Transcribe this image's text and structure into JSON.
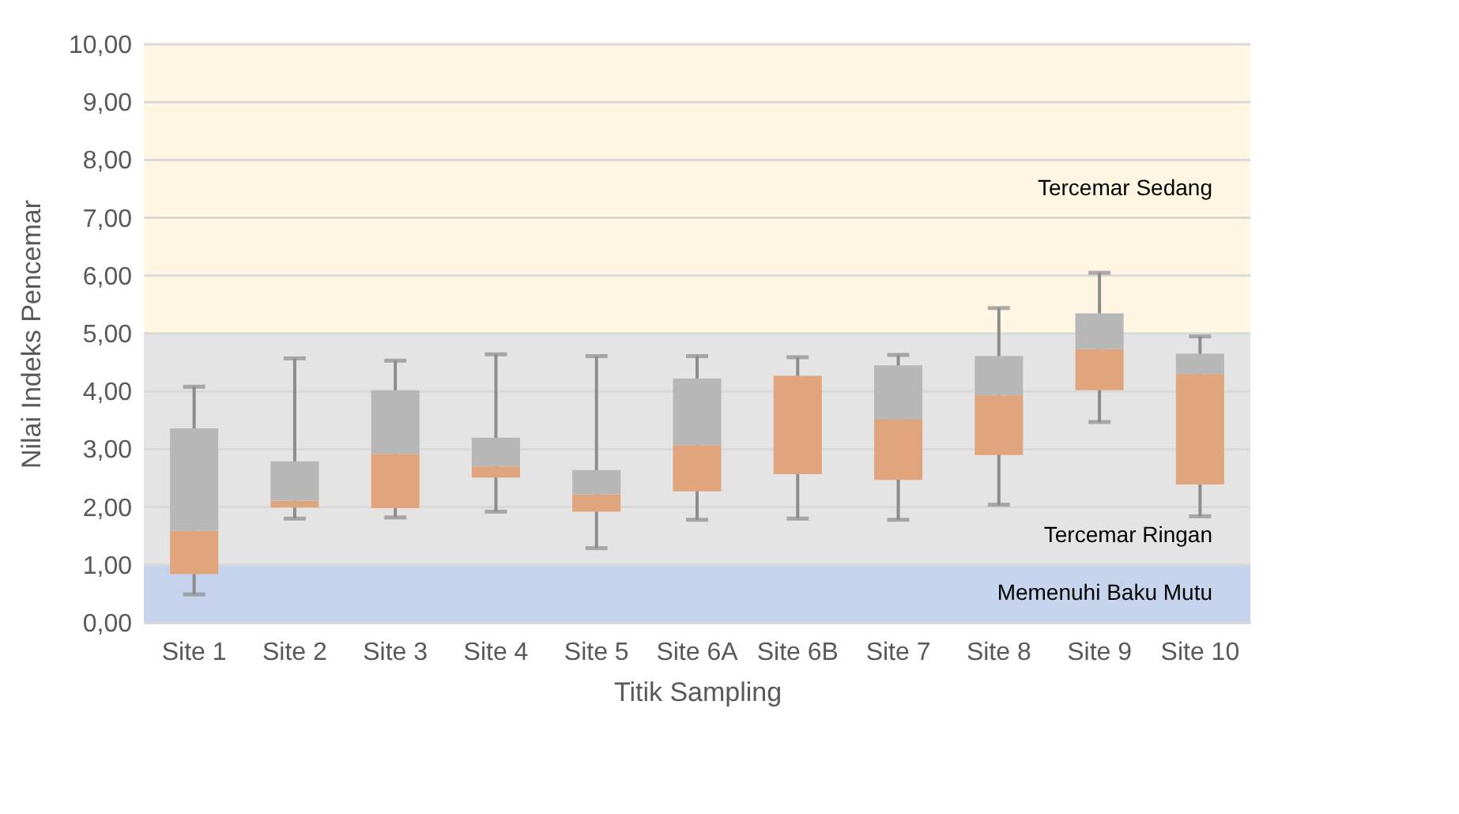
{
  "chart_data": {
    "type": "box",
    "xlabel": "Titik Sampling",
    "ylabel": "Nilai Indeks Pencemar",
    "categories": [
      "Site 1",
      "Site 2",
      "Site 3",
      "Site 4",
      "Site 5",
      "Site 6A",
      "Site 6B",
      "Site 7",
      "Site 8",
      "Site 9",
      "Site 10"
    ],
    "series": [
      {
        "color": "#e0a57c",
        "boxes": [
          {
            "low": 0.49,
            "q1": 0.84,
            "median": 1.59,
            "q3": 3.36,
            "high": 4.08
          },
          {
            "low": 1.8,
            "q1": 1.99,
            "median": 2.11,
            "q3": 2.79,
            "high": 4.57
          },
          {
            "low": 1.82,
            "q1": 1.98,
            "median": 2.92,
            "q3": 4.02,
            "high": 4.53
          },
          {
            "low": 1.92,
            "q1": 2.51,
            "median": 2.7,
            "q3": 3.2,
            "high": 4.64
          },
          {
            "low": 1.29,
            "q1": 1.92,
            "median": 2.22,
            "q3": 2.64,
            "high": 4.61
          },
          {
            "low": 1.78,
            "q1": 2.27,
            "median": 3.07,
            "q3": 4.22,
            "high": 4.61
          },
          {
            "low": 1.8,
            "q1": 2.57,
            "median": 4.27,
            "q3": 4.27,
            "high": 4.59
          },
          {
            "low": 1.78,
            "q1": 2.47,
            "median": 3.51,
            "q3": 4.45,
            "high": 4.63
          },
          {
            "low": 2.04,
            "q1": 2.9,
            "median": 3.93,
            "q3": 4.61,
            "high": 5.44
          },
          {
            "low": 3.47,
            "q1": 4.02,
            "median": 4.73,
            "q3": 5.35,
            "high": 6.05
          },
          {
            "low": 1.84,
            "q1": 2.39,
            "median": 4.3,
            "q3": 4.65,
            "high": 4.95
          }
        ]
      }
    ],
    "colors": [
      "#b7b7b7",
      "#b7b7b7",
      "#b7b7b7",
      "#b7b7b7",
      "#b7b7b7",
      "#b7b7b7",
      "#b7b7b7",
      "#b7b7b7",
      "#b7b7b7",
      "#b7b7b7",
      "#b7b7b7"
    ],
    "ylim": [
      0,
      10
    ],
    "yticks": [
      {
        "value": 0,
        "label": "0,00"
      },
      {
        "value": 1,
        "label": "1,00"
      },
      {
        "value": 2,
        "label": "2,00"
      },
      {
        "value": 3,
        "label": "3,00"
      },
      {
        "value": 4,
        "label": "4,00"
      },
      {
        "value": 5,
        "label": "5,00"
      },
      {
        "value": 6,
        "label": "6,00"
      },
      {
        "value": 7,
        "label": "7,00"
      },
      {
        "value": 8,
        "label": "8,00"
      },
      {
        "value": 9,
        "label": "9,00"
      },
      {
        "value": 10,
        "label": "10,00"
      }
    ],
    "bands": [
      {
        "axis": "y",
        "from": 0,
        "to": 1,
        "label": "Memenuhi Baku Mutu",
        "color": "#c5d3ec"
      },
      {
        "axis": "y",
        "from": 1,
        "to": 5,
        "label": "Tercemar Ringan",
        "color": "#e4e4e4"
      },
      {
        "axis": "y",
        "from": 5,
        "to": 10,
        "label": "Tercemar Sedang",
        "color": "#fff6e3"
      }
    ],
    "grid": "y"
  }
}
